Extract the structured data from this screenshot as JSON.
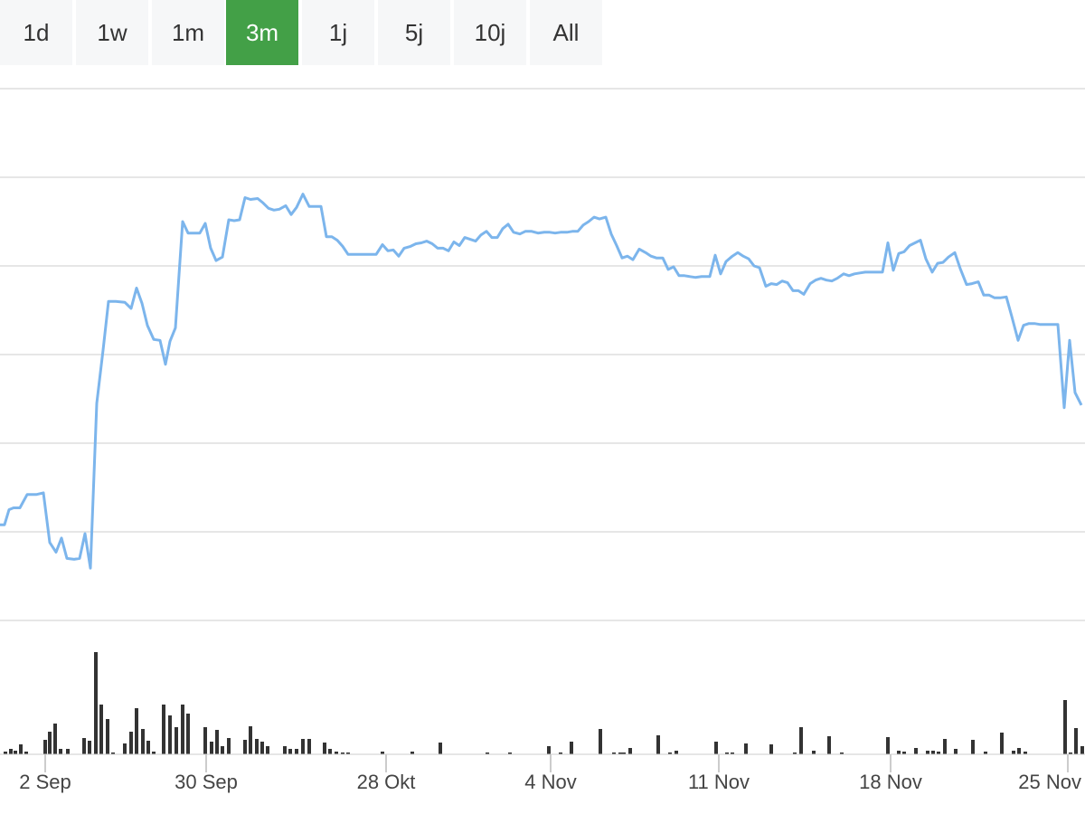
{
  "range_selector": {
    "buttons": [
      {
        "label": "1d",
        "active": false
      },
      {
        "label": "1w",
        "active": false
      },
      {
        "label": "1m",
        "active": false
      },
      {
        "label": "3m",
        "active": true
      },
      {
        "label": "1j",
        "active": false
      },
      {
        "label": "5j",
        "active": false
      },
      {
        "label": "10j",
        "active": false
      },
      {
        "label": "All",
        "active": false
      }
    ]
  },
  "colors": {
    "active_button": "#43a047",
    "button_bg": "#f6f7f8",
    "price_line": "#7cb5ec",
    "volume_bar": "#333333",
    "grid": "#e6e6e6"
  },
  "chart_data": {
    "type": "line",
    "title": "",
    "xlabel": "",
    "ylabel": "",
    "grid": true,
    "x_ticks": [
      "2 Sep",
      "30 Sep",
      "28 Okt",
      "4 Nov",
      "11 Nov",
      "18 Nov",
      "25 Nov"
    ],
    "y_range": [
      0,
      6
    ],
    "series": [
      {
        "kind": "price",
        "points": [
          [
            0,
            1.08
          ],
          [
            5,
            1.08
          ],
          [
            10,
            1.25
          ],
          [
            15,
            1.27
          ],
          [
            22,
            1.27
          ],
          [
            30,
            1.42
          ],
          [
            40,
            1.42
          ],
          [
            48,
            1.44
          ],
          [
            55,
            0.88
          ],
          [
            62,
            0.77
          ],
          [
            68,
            0.93
          ],
          [
            74,
            0.7
          ],
          [
            82,
            0.69
          ],
          [
            88,
            0.7
          ],
          [
            94,
            0.98
          ],
          [
            100,
            0.59
          ],
          [
            107,
            2.45
          ],
          [
            114,
            3.05
          ],
          [
            120,
            3.6
          ],
          [
            128,
            3.6
          ],
          [
            138,
            3.59
          ],
          [
            145,
            3.52
          ],
          [
            151,
            3.75
          ],
          [
            157,
            3.58
          ],
          [
            163,
            3.33
          ],
          [
            170,
            3.17
          ],
          [
            177,
            3.16
          ],
          [
            183,
            2.89
          ],
          [
            188,
            3.15
          ],
          [
            194,
            3.3
          ],
          [
            202,
            4.5
          ],
          [
            208,
            4.37
          ],
          [
            215,
            4.37
          ],
          [
            221,
            4.37
          ],
          [
            227,
            4.48
          ],
          [
            233,
            4.2
          ],
          [
            239,
            4.06
          ],
          [
            246,
            4.1
          ],
          [
            253,
            4.52
          ],
          [
            259,
            4.51
          ],
          [
            265,
            4.52
          ],
          [
            271,
            4.77
          ],
          [
            277,
            4.75
          ],
          [
            285,
            4.76
          ],
          [
            291,
            4.71
          ],
          [
            297,
            4.65
          ],
          [
            303,
            4.63
          ],
          [
            309,
            4.64
          ],
          [
            316,
            4.68
          ],
          [
            322,
            4.58
          ],
          [
            328,
            4.66
          ],
          [
            335,
            4.81
          ],
          [
            342,
            4.67
          ],
          [
            348,
            4.67
          ],
          [
            355,
            4.67
          ],
          [
            361,
            4.33
          ],
          [
            367,
            4.33
          ],
          [
            373,
            4.29
          ],
          [
            379,
            4.22
          ],
          [
            385,
            4.13
          ],
          [
            391,
            4.13
          ],
          [
            397,
            4.13
          ],
          [
            404,
            4.13
          ],
          [
            410,
            4.13
          ],
          [
            416,
            4.13
          ],
          [
            423,
            4.24
          ],
          [
            429,
            4.17
          ],
          [
            435,
            4.18
          ],
          [
            441,
            4.11
          ],
          [
            447,
            4.2
          ],
          [
            454,
            4.22
          ],
          [
            460,
            4.25
          ],
          [
            466,
            4.26
          ],
          [
            472,
            4.28
          ],
          [
            478,
            4.25
          ],
          [
            484,
            4.2
          ],
          [
            490,
            4.2
          ],
          [
            496,
            4.17
          ],
          [
            502,
            4.27
          ],
          [
            508,
            4.23
          ],
          [
            514,
            4.32
          ],
          [
            520,
            4.3
          ],
          [
            526,
            4.28
          ],
          [
            532,
            4.35
          ],
          [
            538,
            4.39
          ],
          [
            544,
            4.32
          ],
          [
            550,
            4.32
          ],
          [
            556,
            4.42
          ],
          [
            562,
            4.47
          ],
          [
            568,
            4.38
          ],
          [
            575,
            4.36
          ],
          [
            581,
            4.39
          ],
          [
            588,
            4.39
          ],
          [
            595,
            4.37
          ],
          [
            602,
            4.38
          ],
          [
            608,
            4.38
          ],
          [
            614,
            4.37
          ],
          [
            620,
            4.38
          ],
          [
            627,
            4.38
          ],
          [
            633,
            4.39
          ],
          [
            639,
            4.39
          ],
          [
            645,
            4.46
          ],
          [
            651,
            4.5
          ],
          [
            657,
            4.55
          ],
          [
            663,
            4.53
          ],
          [
            670,
            4.55
          ],
          [
            676,
            4.36
          ],
          [
            682,
            4.23
          ],
          [
            688,
            4.09
          ],
          [
            694,
            4.11
          ],
          [
            700,
            4.07
          ],
          [
            707,
            4.19
          ],
          [
            714,
            4.15
          ],
          [
            720,
            4.11
          ],
          [
            726,
            4.09
          ],
          [
            733,
            4.09
          ],
          [
            739,
            3.96
          ],
          [
            745,
            3.99
          ],
          [
            751,
            3.89
          ],
          [
            757,
            3.89
          ],
          [
            763,
            3.88
          ],
          [
            769,
            3.87
          ],
          [
            776,
            3.88
          ],
          [
            782,
            3.88
          ],
          [
            785,
            3.88
          ],
          [
            791,
            4.12
          ],
          [
            797,
            3.91
          ],
          [
            803,
            4.05
          ],
          [
            810,
            4.11
          ],
          [
            816,
            4.15
          ],
          [
            822,
            4.11
          ],
          [
            828,
            4.08
          ],
          [
            834,
            4.0
          ],
          [
            840,
            3.98
          ],
          [
            847,
            3.77
          ],
          [
            853,
            3.8
          ],
          [
            859,
            3.79
          ],
          [
            865,
            3.83
          ],
          [
            871,
            3.81
          ],
          [
            877,
            3.72
          ],
          [
            883,
            3.72
          ],
          [
            889,
            3.68
          ],
          [
            896,
            3.8
          ],
          [
            902,
            3.84
          ],
          [
            908,
            3.86
          ],
          [
            914,
            3.84
          ],
          [
            920,
            3.83
          ],
          [
            926,
            3.86
          ],
          [
            933,
            3.91
          ],
          [
            939,
            3.89
          ],
          [
            945,
            3.91
          ],
          [
            951,
            3.92
          ],
          [
            957,
            3.93
          ],
          [
            963,
            3.93
          ],
          [
            969,
            3.93
          ],
          [
            976,
            3.93
          ],
          [
            982,
            4.26
          ],
          [
            988,
            3.95
          ],
          [
            994,
            4.14
          ],
          [
            1000,
            4.16
          ],
          [
            1006,
            4.23
          ],
          [
            1012,
            4.26
          ],
          [
            1018,
            4.29
          ],
          [
            1024,
            4.08
          ],
          [
            1031,
            3.93
          ],
          [
            1037,
            4.03
          ],
          [
            1043,
            4.04
          ],
          [
            1049,
            4.1
          ],
          [
            1056,
            4.15
          ],
          [
            1062,
            3.97
          ],
          [
            1069,
            3.79
          ],
          [
            1075,
            3.8
          ],
          [
            1082,
            3.82
          ],
          [
            1088,
            3.67
          ],
          [
            1094,
            3.67
          ],
          [
            1100,
            3.64
          ],
          [
            1106,
            3.64
          ],
          [
            1113,
            3.65
          ],
          [
            1119,
            3.43
          ],
          [
            1126,
            3.16
          ],
          [
            1132,
            3.33
          ],
          [
            1138,
            3.35
          ],
          [
            1144,
            3.35
          ],
          [
            1150,
            3.34
          ],
          [
            1157,
            3.34
          ],
          [
            1164,
            3.34
          ],
          [
            1170,
            3.34
          ],
          [
            1177,
            2.4
          ],
          [
            1183,
            3.16
          ],
          [
            1189,
            2.57
          ],
          [
            1196,
            2.43
          ]
        ]
      },
      {
        "kind": "volume",
        "bars": [
          [
            6,
            3
          ],
          [
            12,
            6
          ],
          [
            17,
            4
          ],
          [
            23,
            11
          ],
          [
            29,
            3
          ],
          [
            50,
            16
          ],
          [
            55,
            25
          ],
          [
            61,
            34
          ],
          [
            67,
            6
          ],
          [
            75,
            6
          ],
          [
            93,
            18
          ],
          [
            99,
            15
          ],
          [
            106,
            113
          ],
          [
            112,
            55
          ],
          [
            119,
            39
          ],
          [
            125,
            2
          ],
          [
            138,
            12
          ],
          [
            145,
            25
          ],
          [
            151,
            51
          ],
          [
            158,
            28
          ],
          [
            164,
            15
          ],
          [
            170,
            3
          ],
          [
            181,
            55
          ],
          [
            188,
            43
          ],
          [
            195,
            30
          ],
          [
            202,
            55
          ],
          [
            208,
            45
          ],
          [
            227,
            30
          ],
          [
            234,
            14
          ],
          [
            240,
            27
          ],
          [
            246,
            9
          ],
          [
            253,
            18
          ],
          [
            271,
            16
          ],
          [
            277,
            31
          ],
          [
            284,
            17
          ],
          [
            290,
            14
          ],
          [
            296,
            9
          ],
          [
            315,
            9
          ],
          [
            321,
            6
          ],
          [
            328,
            6
          ],
          [
            335,
            17
          ],
          [
            342,
            17
          ],
          [
            359,
            13
          ],
          [
            365,
            6
          ],
          [
            372,
            3
          ],
          [
            379,
            2
          ],
          [
            385,
            2
          ],
          [
            423,
            3
          ],
          [
            456,
            3
          ],
          [
            487,
            13
          ],
          [
            539,
            2
          ],
          [
            564,
            2
          ],
          [
            607,
            9
          ],
          [
            620,
            2
          ],
          [
            632,
            14
          ],
          [
            664,
            28
          ],
          [
            679,
            2
          ],
          [
            686,
            2
          ],
          [
            690,
            2
          ],
          [
            697,
            7
          ],
          [
            728,
            21
          ],
          [
            741,
            2
          ],
          [
            748,
            4
          ],
          [
            792,
            14
          ],
          [
            804,
            2
          ],
          [
            810,
            2
          ],
          [
            825,
            12
          ],
          [
            853,
            11
          ],
          [
            879,
            2
          ],
          [
            886,
            30
          ],
          [
            900,
            4
          ],
          [
            917,
            20
          ],
          [
            931,
            2
          ],
          [
            982,
            19
          ],
          [
            994,
            4
          ],
          [
            1000,
            3
          ],
          [
            1013,
            7
          ],
          [
            1026,
            4
          ],
          [
            1032,
            4
          ],
          [
            1038,
            3
          ],
          [
            1045,
            17
          ],
          [
            1057,
            6
          ],
          [
            1076,
            16
          ],
          [
            1090,
            3
          ],
          [
            1108,
            24
          ],
          [
            1121,
            4
          ],
          [
            1127,
            7
          ],
          [
            1134,
            3
          ],
          [
            1178,
            60
          ],
          [
            1184,
            2
          ],
          [
            1190,
            29
          ],
          [
            1197,
            9
          ]
        ]
      }
    ]
  }
}
